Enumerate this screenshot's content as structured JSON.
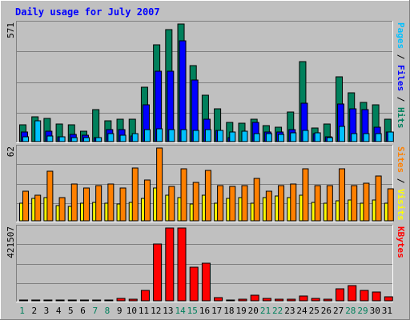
{
  "title": "Daily usage for July 2007",
  "colors": {
    "background": "#c0c0c0",
    "panel": "#c0c0c0",
    "grid": "#808080",
    "hits": "#00805c",
    "files": "#0000ff",
    "pages": "#00c0ff",
    "visits": "#ffff00",
    "sites": "#ff8000",
    "kbytes": "#ff0000",
    "weekend_tick": "#00805c",
    "weekday_tick": "#000000"
  },
  "chart_data": [
    {
      "type": "bar",
      "panel": "hits-files-pages",
      "ymax_label": "571",
      "ylim": [
        0,
        571
      ],
      "right_label": {
        "parts": [
          "Pages",
          " / ",
          "Files",
          " / ",
          "Hits"
        ]
      },
      "categories": [
        "1",
        "2",
        "3",
        "4",
        "5",
        "6",
        "7",
        "8",
        "9",
        "10",
        "11",
        "12",
        "13",
        "14",
        "15",
        "16",
        "17",
        "18",
        "19",
        "20",
        "21",
        "22",
        "23",
        "24",
        "25",
        "26",
        "27",
        "28",
        "29",
        "30",
        "31"
      ],
      "series": [
        {
          "name": "Hits",
          "values": [
            82,
            120,
            112,
            86,
            82,
            52,
            155,
            100,
            108,
            110,
            265,
            470,
            545,
            570,
            370,
            226,
            160,
            95,
            90,
            108,
            76,
            70,
            143,
            388,
            66,
            85,
            314,
            238,
            190,
            180,
            110
          ]
        },
        {
          "name": "Files",
          "values": [
            48,
            0,
            50,
            25,
            35,
            30,
            18,
            60,
            60,
            28,
            180,
            340,
            340,
            490,
            300,
            110,
            55,
            20,
            0,
            93,
            45,
            45,
            60,
            185,
            40,
            25,
            182,
            160,
            155,
            70,
            45
          ]
        },
        {
          "name": "Pages",
          "values": [
            22,
            100,
            26,
            22,
            20,
            20,
            20,
            38,
            32,
            38,
            60,
            62,
            60,
            58,
            56,
            60,
            54,
            46,
            50,
            38,
            38,
            36,
            42,
            54,
            42,
            20,
            74,
            40,
            38,
            38,
            46
          ]
        }
      ]
    },
    {
      "type": "bar",
      "panel": "visits-sites",
      "ymax_label": "62",
      "ylim": [
        0,
        62
      ],
      "right_label": {
        "parts": [
          "Sites",
          " / ",
          "Visits"
        ]
      },
      "categories": [
        "1",
        "2",
        "3",
        "4",
        "5",
        "6",
        "7",
        "8",
        "9",
        "10",
        "11",
        "12",
        "13",
        "14",
        "15",
        "16",
        "17",
        "18",
        "19",
        "20",
        "21",
        "22",
        "23",
        "24",
        "25",
        "26",
        "27",
        "28",
        "29",
        "30",
        "31"
      ],
      "series": [
        {
          "name": "Visits",
          "values": [
            15,
            19,
            20,
            13,
            12,
            15,
            16,
            15,
            14,
            16,
            19,
            28,
            22,
            20,
            14,
            22,
            15,
            19,
            20,
            15,
            20,
            21,
            20,
            22,
            16,
            15,
            17,
            18,
            15,
            18,
            15
          ]
        },
        {
          "name": "Sites",
          "values": [
            25,
            22,
            42,
            20,
            31,
            28,
            30,
            31,
            28,
            45,
            35,
            62,
            29,
            44,
            33,
            43,
            30,
            29,
            30,
            36,
            25,
            30,
            31,
            44,
            30,
            30,
            44,
            30,
            32,
            38,
            27
          ]
        }
      ]
    },
    {
      "type": "bar",
      "panel": "kbytes",
      "ymax_label": "421507",
      "ylim": [
        0,
        421507
      ],
      "right_label": {
        "parts": [
          "KBytes"
        ]
      },
      "categories": [
        "1",
        "2",
        "3",
        "4",
        "5",
        "6",
        "7",
        "8",
        "9",
        "10",
        "11",
        "12",
        "13",
        "14",
        "15",
        "16",
        "17",
        "18",
        "19",
        "20",
        "21",
        "22",
        "23",
        "24",
        "25",
        "26",
        "27",
        "28",
        "29",
        "30",
        "31"
      ],
      "series": [
        {
          "name": "KBytes",
          "values": [
            6000,
            4000,
            4000,
            4000,
            4000,
            4000,
            5000,
            4000,
            15000,
            8000,
            60000,
            330000,
            421507,
            421507,
            195000,
            220000,
            20000,
            5000,
            11000,
            34000,
            12000,
            11000,
            10000,
            28000,
            12000,
            9000,
            70000,
            90000,
            62000,
            50000,
            25000
          ]
        }
      ]
    }
  ],
  "x_ticks": [
    "1",
    "2",
    "3",
    "4",
    "5",
    "6",
    "7",
    "8",
    "9",
    "10",
    "11",
    "12",
    "13",
    "14",
    "15",
    "16",
    "17",
    "18",
    "19",
    "20",
    "21",
    "22",
    "23",
    "24",
    "25",
    "26",
    "27",
    "28",
    "29",
    "30",
    "31"
  ],
  "weekend_days": [
    "1",
    "7",
    "8",
    "14",
    "15",
    "21",
    "22",
    "28",
    "29"
  ]
}
